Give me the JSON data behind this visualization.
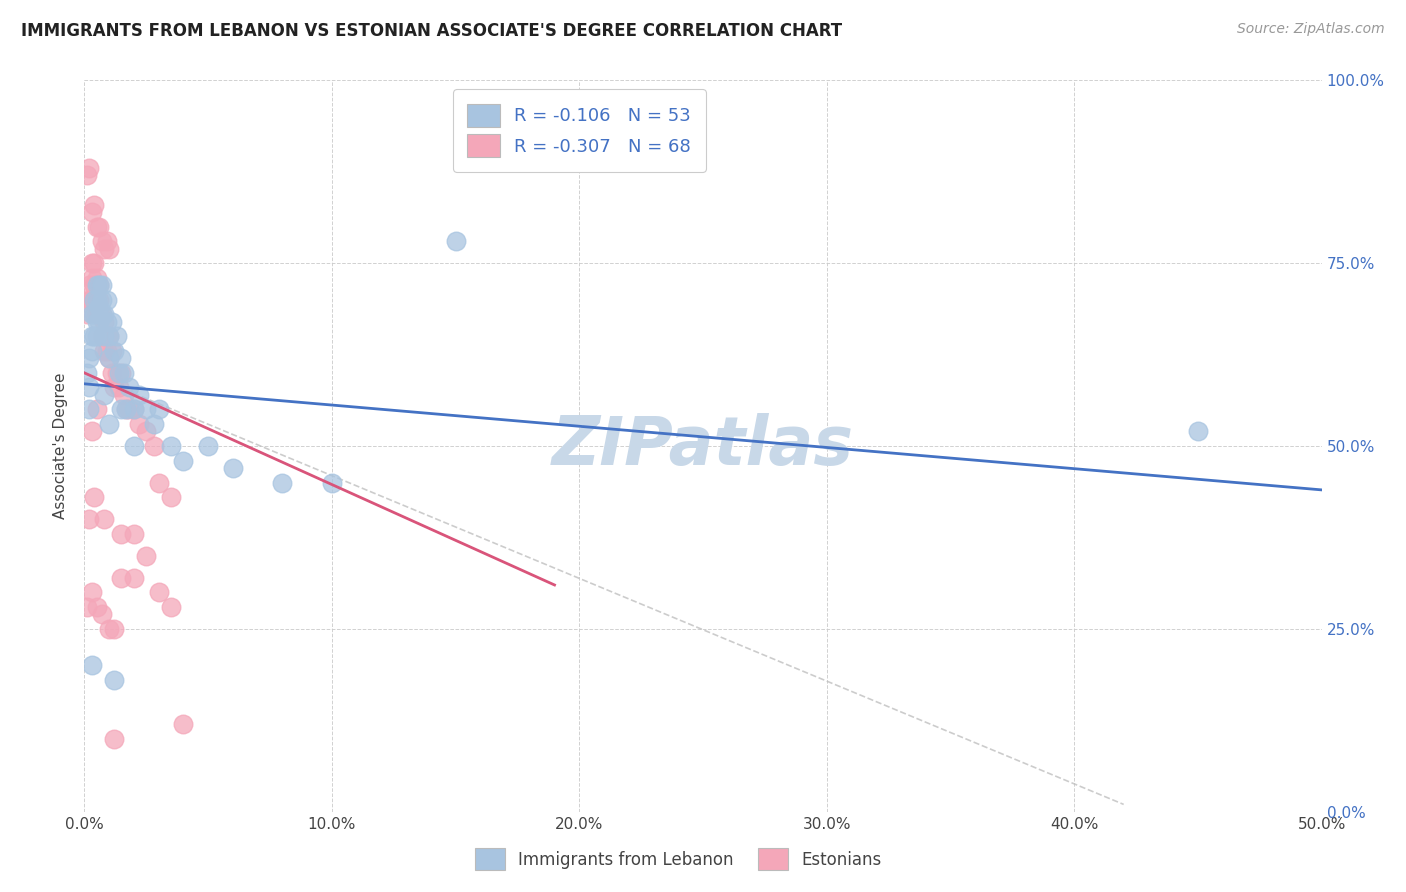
{
  "title": "IMMIGRANTS FROM LEBANON VS ESTONIAN ASSOCIATE'S DEGREE CORRELATION CHART",
  "source": "Source: ZipAtlas.com",
  "xlabel_ticks": [
    "0.0%",
    "10.0%",
    "20.0%",
    "30.0%",
    "40.0%",
    "50.0%"
  ],
  "ylabel_ticks": [
    "0.0%",
    "25.0%",
    "50.0%",
    "75.0%",
    "100.0%"
  ],
  "xlim": [
    0.0,
    0.5
  ],
  "ylim": [
    0.0,
    1.0
  ],
  "legend1_label": "R = -0.106   N = 53",
  "legend2_label": "R = -0.307   N = 68",
  "legend_xlabel": "Immigrants from Lebanon",
  "legend_ylabel": "Estonians",
  "blue_color": "#a8c4e0",
  "pink_color": "#f4a7b9",
  "blue_line_color": "#4472c4",
  "pink_line_color": "#d9547a",
  "watermark": "ZIPatlas",
  "watermark_color": "#c8d8e8",
  "blue_x": [
    0.001,
    0.002,
    0.002,
    0.003,
    0.003,
    0.003,
    0.004,
    0.004,
    0.004,
    0.005,
    0.005,
    0.005,
    0.005,
    0.006,
    0.006,
    0.006,
    0.007,
    0.007,
    0.007,
    0.008,
    0.008,
    0.009,
    0.009,
    0.01,
    0.01,
    0.011,
    0.012,
    0.013,
    0.014,
    0.015,
    0.016,
    0.017,
    0.018,
    0.02,
    0.022,
    0.025,
    0.028,
    0.03,
    0.035,
    0.04,
    0.05,
    0.06,
    0.08,
    0.1,
    0.15,
    0.002,
    0.008,
    0.01,
    0.015,
    0.02,
    0.45,
    0.003,
    0.012
  ],
  "blue_y": [
    0.6,
    0.62,
    0.58,
    0.68,
    0.65,
    0.63,
    0.7,
    0.68,
    0.65,
    0.72,
    0.7,
    0.67,
    0.65,
    0.72,
    0.69,
    0.67,
    0.72,
    0.7,
    0.68,
    0.68,
    0.65,
    0.7,
    0.67,
    0.65,
    0.62,
    0.67,
    0.63,
    0.65,
    0.6,
    0.62,
    0.6,
    0.55,
    0.58,
    0.55,
    0.57,
    0.55,
    0.53,
    0.55,
    0.5,
    0.48,
    0.5,
    0.47,
    0.45,
    0.45,
    0.78,
    0.55,
    0.57,
    0.53,
    0.55,
    0.5,
    0.52,
    0.2,
    0.18
  ],
  "pink_x": [
    0.001,
    0.002,
    0.002,
    0.003,
    0.003,
    0.003,
    0.004,
    0.004,
    0.004,
    0.005,
    0.005,
    0.005,
    0.006,
    0.006,
    0.006,
    0.007,
    0.007,
    0.008,
    0.008,
    0.009,
    0.009,
    0.01,
    0.01,
    0.011,
    0.011,
    0.012,
    0.013,
    0.014,
    0.015,
    0.016,
    0.017,
    0.018,
    0.02,
    0.022,
    0.025,
    0.028,
    0.03,
    0.035,
    0.001,
    0.002,
    0.003,
    0.004,
    0.005,
    0.006,
    0.007,
    0.008,
    0.009,
    0.01,
    0.003,
    0.005,
    0.001,
    0.003,
    0.005,
    0.007,
    0.01,
    0.012,
    0.002,
    0.004,
    0.008,
    0.015,
    0.02,
    0.025,
    0.015,
    0.02,
    0.03,
    0.035,
    0.04,
    0.012
  ],
  "pink_y": [
    0.68,
    0.72,
    0.7,
    0.75,
    0.73,
    0.7,
    0.75,
    0.72,
    0.7,
    0.73,
    0.7,
    0.68,
    0.72,
    0.7,
    0.68,
    0.68,
    0.65,
    0.67,
    0.63,
    0.65,
    0.63,
    0.62,
    0.65,
    0.6,
    0.63,
    0.58,
    0.6,
    0.58,
    0.6,
    0.57,
    0.55,
    0.55,
    0.55,
    0.53,
    0.52,
    0.5,
    0.45,
    0.43,
    0.87,
    0.88,
    0.82,
    0.83,
    0.8,
    0.8,
    0.78,
    0.77,
    0.78,
    0.77,
    0.52,
    0.55,
    0.28,
    0.3,
    0.28,
    0.27,
    0.25,
    0.25,
    0.4,
    0.43,
    0.4,
    0.38,
    0.38,
    0.35,
    0.32,
    0.32,
    0.3,
    0.28,
    0.12,
    0.1
  ]
}
